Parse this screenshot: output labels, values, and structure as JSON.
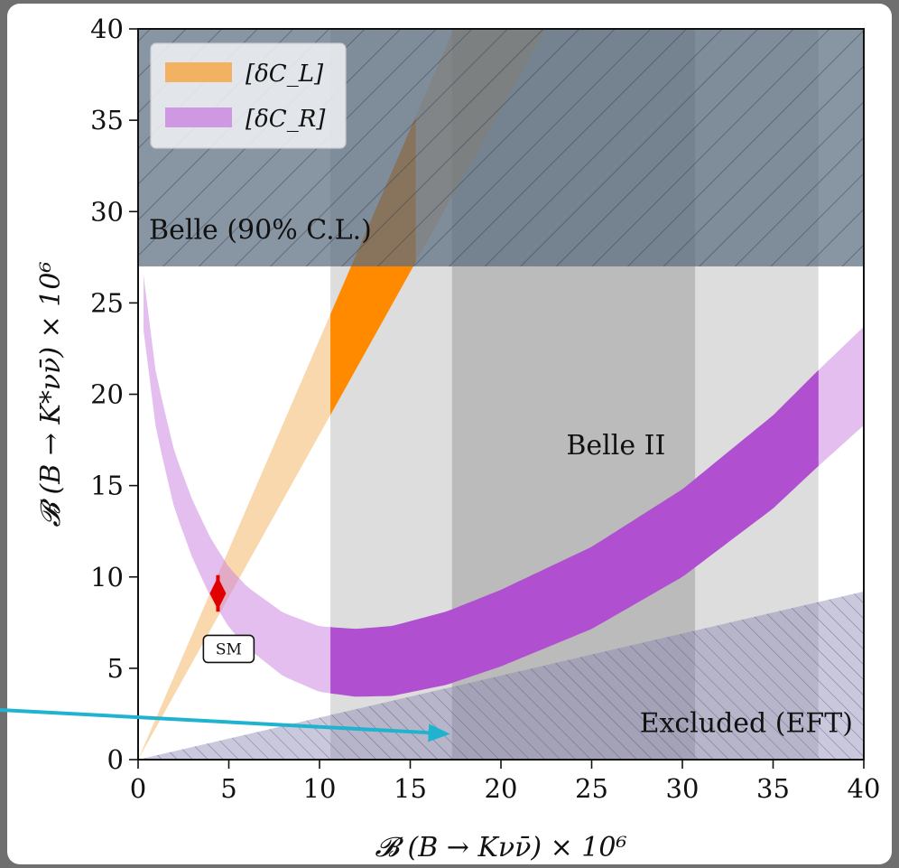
{
  "chart_data": {
    "type": "area",
    "title": "",
    "xlabel": "𝓑 (B → Kνν̄) × 10⁶",
    "ylabel": "𝓑 (B → K*νν̄) × 10⁶",
    "xlim": [
      0,
      40
    ],
    "ylim": [
      0,
      40
    ],
    "xticks": [
      "0",
      "5",
      "10",
      "15",
      "20",
      "25",
      "30",
      "35",
      "40"
    ],
    "yticks": [
      "0",
      "5",
      "10",
      "15",
      "20",
      "25",
      "30",
      "35",
      "40"
    ],
    "grid": false,
    "legend_position": "top-left",
    "legend": [
      {
        "label": "[δC_L]",
        "color": "#f5a94a"
      },
      {
        "label": "[δC_R]",
        "color": "#c77de0"
      }
    ],
    "regions": {
      "belle": {
        "label": "Belle (90% C.L.)",
        "y_min": 27,
        "color": "#5a6c80"
      },
      "belle2": {
        "label": "Belle II",
        "x_outer": [
          10.6,
          37.5
        ],
        "x_inner": [
          17.3,
          30.7
        ],
        "color": "#9e9e9e"
      },
      "excluded": {
        "label": "Excluded (EFT)",
        "upper_y_at_x40": 9.2,
        "color": "#8a84b2"
      }
    },
    "series": [
      {
        "name": "[δC_L]",
        "kind": "wedge",
        "lower_slope": 1.78,
        "upper_slope": 2.3,
        "highlight_x": [
          10.6,
          15.3
        ]
      },
      {
        "name": "[δC_R]",
        "kind": "band",
        "center_points": [
          [
            0.3,
            25.0
          ],
          [
            1,
            19.5
          ],
          [
            2,
            15.3
          ],
          [
            3,
            12.6
          ],
          [
            4,
            10.5
          ],
          [
            5,
            8.9
          ],
          [
            6,
            7.8
          ],
          [
            8,
            6.3
          ],
          [
            10,
            5.5
          ],
          [
            12,
            5.3
          ],
          [
            14,
            5.4
          ],
          [
            17,
            6.1
          ],
          [
            20,
            7.2
          ],
          [
            25,
            9.4
          ],
          [
            30,
            12.4
          ],
          [
            35,
            16.3
          ],
          [
            37.5,
            18.7
          ],
          [
            40,
            21.0
          ]
        ],
        "half_width": [
          1.5,
          2.7
        ],
        "highlight_x": [
          10.6,
          37.5
        ]
      }
    ],
    "sm_point": {
      "label": "SM",
      "x": 4.4,
      "y": 9.1,
      "y_err": [
        8.1,
        10.1
      ],
      "color": "#e00000"
    },
    "annotation_arrow": {
      "to_x": 17.2,
      "to_y": 1.4,
      "color": "#1fb3cf"
    }
  }
}
